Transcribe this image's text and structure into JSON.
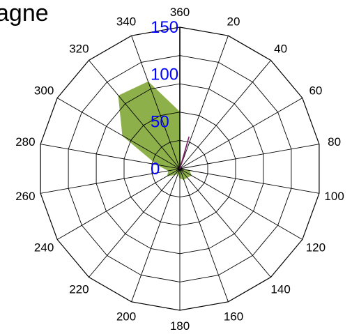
{
  "chart_data": {
    "type": "area",
    "subtype": "polar-radar",
    "title": "agne",
    "angle_labels": [
      "20",
      "40",
      "60",
      "80",
      "100",
      "120",
      "140",
      "160",
      "180",
      "200",
      "220",
      "240",
      "260",
      "280",
      "300",
      "320",
      "340",
      "360"
    ],
    "radial_ticks": [
      "0",
      "50",
      "100",
      "150"
    ],
    "radial_range": [
      0,
      150
    ],
    "grid": true,
    "colors": {
      "fill": "#8db04a",
      "stroke": "#8db04a",
      "grid": "#000000",
      "radial_tick_labels": "#0000ff",
      "accent_line": "#7a1f66"
    },
    "series": [
      {
        "angles": [
          20,
          40,
          60,
          80,
          100,
          120,
          140,
          160,
          180,
          200,
          220,
          240,
          260,
          280,
          300,
          320,
          340,
          360
        ],
        "values": [
          2,
          1,
          1,
          1,
          10,
          14,
          12,
          12,
          10,
          5,
          8,
          15,
          12,
          24,
          70,
          101,
          98,
          60
        ]
      }
    ]
  }
}
